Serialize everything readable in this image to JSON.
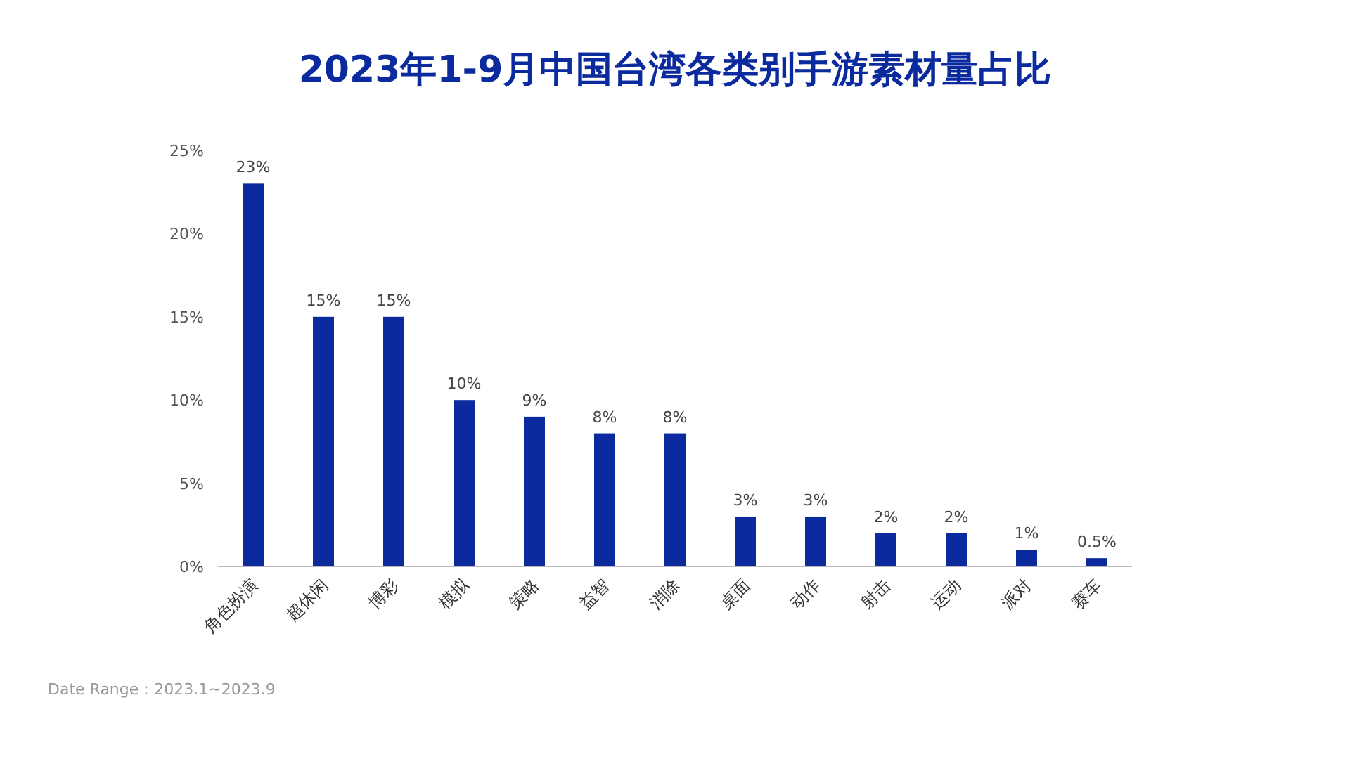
{
  "chart_data": {
    "type": "bar",
    "title": "2023年1-9月中国台湾各类别手游素材量占比",
    "categories": [
      "角色扮演",
      "超休闲",
      "博彩",
      "模拟",
      "策略",
      "益智",
      "消除",
      "桌面",
      "动作",
      "射击",
      "运动",
      "派对",
      "赛车"
    ],
    "values": [
      23,
      15,
      15,
      10,
      9,
      8,
      8,
      3,
      3,
      2,
      2,
      1,
      0.5
    ],
    "value_labels": [
      "23%",
      "15%",
      "15%",
      "10%",
      "9%",
      "8%",
      "8%",
      "3%",
      "3%",
      "2%",
      "2%",
      "1%",
      "0.5%"
    ],
    "color": "#0a2a9e",
    "ylim": [
      0,
      25
    ],
    "yticks": [
      {
        "value": 0,
        "label": "0%"
      },
      {
        "value": 5,
        "label": "5%"
      },
      {
        "value": 10,
        "label": "10%"
      },
      {
        "value": 15,
        "label": "15%"
      },
      {
        "value": 20,
        "label": "20%"
      },
      {
        "value": 25,
        "label": "25%"
      }
    ],
    "annotations": [
      "Date Range：2023.1~2023.9"
    ]
  }
}
